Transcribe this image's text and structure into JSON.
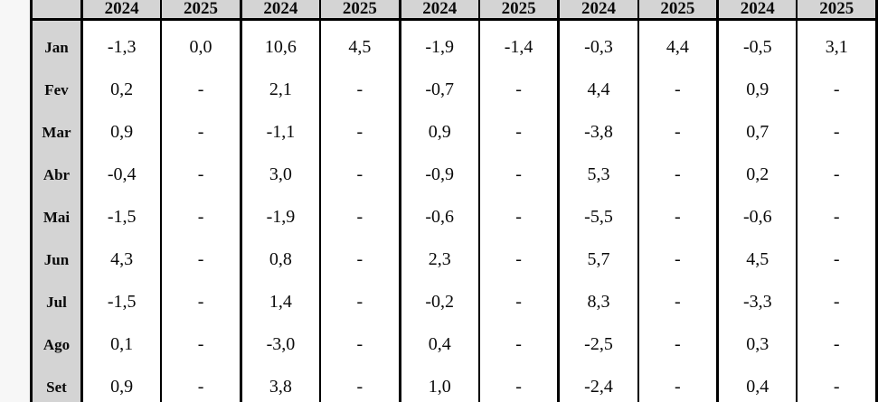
{
  "table": {
    "corner_label": "",
    "year_headers": [
      "2024",
      "2025",
      "2024",
      "2025",
      "2024",
      "2025",
      "2024",
      "2025",
      "2024",
      "2025"
    ],
    "rows": [
      {
        "month": "Jan",
        "values": [
          "-1,3",
          "0,0",
          "10,6",
          "4,5",
          "-1,9",
          "-1,4",
          "-0,3",
          "4,4",
          "-0,5",
          "3,1"
        ]
      },
      {
        "month": "Fev",
        "values": [
          "0,2",
          "-",
          "2,1",
          "-",
          "-0,7",
          "-",
          "4,4",
          "-",
          "0,9",
          "-"
        ]
      },
      {
        "month": "Mar",
        "values": [
          "0,9",
          "-",
          "-1,1",
          "-",
          "0,9",
          "-",
          "-3,8",
          "-",
          "0,7",
          "-"
        ]
      },
      {
        "month": "Abr",
        "values": [
          "-0,4",
          "-",
          "3,0",
          "-",
          "-0,9",
          "-",
          "5,3",
          "-",
          "0,2",
          "-"
        ]
      },
      {
        "month": "Mai",
        "values": [
          "-1,5",
          "-",
          "-1,9",
          "-",
          "-0,6",
          "-",
          "-5,5",
          "-",
          "-0,6",
          "-"
        ]
      },
      {
        "month": "Jun",
        "values": [
          "4,3",
          "-",
          "0,8",
          "-",
          "2,3",
          "-",
          "5,7",
          "-",
          "4,5",
          "-"
        ]
      },
      {
        "month": "Jul",
        "values": [
          "-1,5",
          "-",
          "1,4",
          "-",
          "-0,2",
          "-",
          "8,3",
          "-",
          "-3,3",
          "-"
        ]
      },
      {
        "month": "Ago",
        "values": [
          "0,1",
          "-",
          "-3,0",
          "-",
          "0,4",
          "-",
          "-2,5",
          "-",
          "0,3",
          "-"
        ]
      },
      {
        "month": "Set",
        "values": [
          "0,9",
          "-",
          "3,8",
          "-",
          "1,0",
          "-",
          "-2,4",
          "-",
          "0,4",
          "-"
        ]
      }
    ]
  },
  "colors": {
    "header_background": "#d4d4d4",
    "month_column_background": "#d4d4d4",
    "cell_background": "#ffffff",
    "page_margin_background": "#f7f7f7",
    "border": "#000000",
    "text": "#0a0a0a"
  },
  "chart_data": {
    "type": "table",
    "row_labels": [
      "Jan",
      "Fev",
      "Mar",
      "Abr",
      "Mai",
      "Jun",
      "Jul",
      "Ago",
      "Set"
    ],
    "column_labels": [
      "2024",
      "2025",
      "2024",
      "2025",
      "2024",
      "2025",
      "2024",
      "2025",
      "2024",
      "2025"
    ],
    "values": [
      [
        "-1,3",
        "0,0",
        "10,6",
        "4,5",
        "-1,9",
        "-1,4",
        "-0,3",
        "4,4",
        "-0,5",
        "3,1"
      ],
      [
        "0,2",
        "-",
        "2,1",
        "-",
        "-0,7",
        "-",
        "4,4",
        "-",
        "0,9",
        "-"
      ],
      [
        "0,9",
        "-",
        "-1,1",
        "-",
        "0,9",
        "-",
        "-3,8",
        "-",
        "0,7",
        "-"
      ],
      [
        "-0,4",
        "-",
        "3,0",
        "-",
        "-0,9",
        "-",
        "5,3",
        "-",
        "0,2",
        "-"
      ],
      [
        "-1,5",
        "-",
        "-1,9",
        "-",
        "-0,6",
        "-",
        "-5,5",
        "-",
        "-0,6",
        "-"
      ],
      [
        "4,3",
        "-",
        "0,8",
        "-",
        "2,3",
        "-",
        "5,7",
        "-",
        "4,5",
        "-"
      ],
      [
        "-1,5",
        "-",
        "1,4",
        "-",
        "-0,2",
        "-",
        "8,3",
        "-",
        "-3,3",
        "-"
      ],
      [
        "0,1",
        "-",
        "-3,0",
        "-",
        "0,4",
        "-",
        "-2,5",
        "-",
        "0,3",
        "-"
      ],
      [
        "0,9",
        "-",
        "3,8",
        "-",
        "1,0",
        "-",
        "-2,4",
        "-",
        "0,4",
        "-"
      ]
    ]
  }
}
